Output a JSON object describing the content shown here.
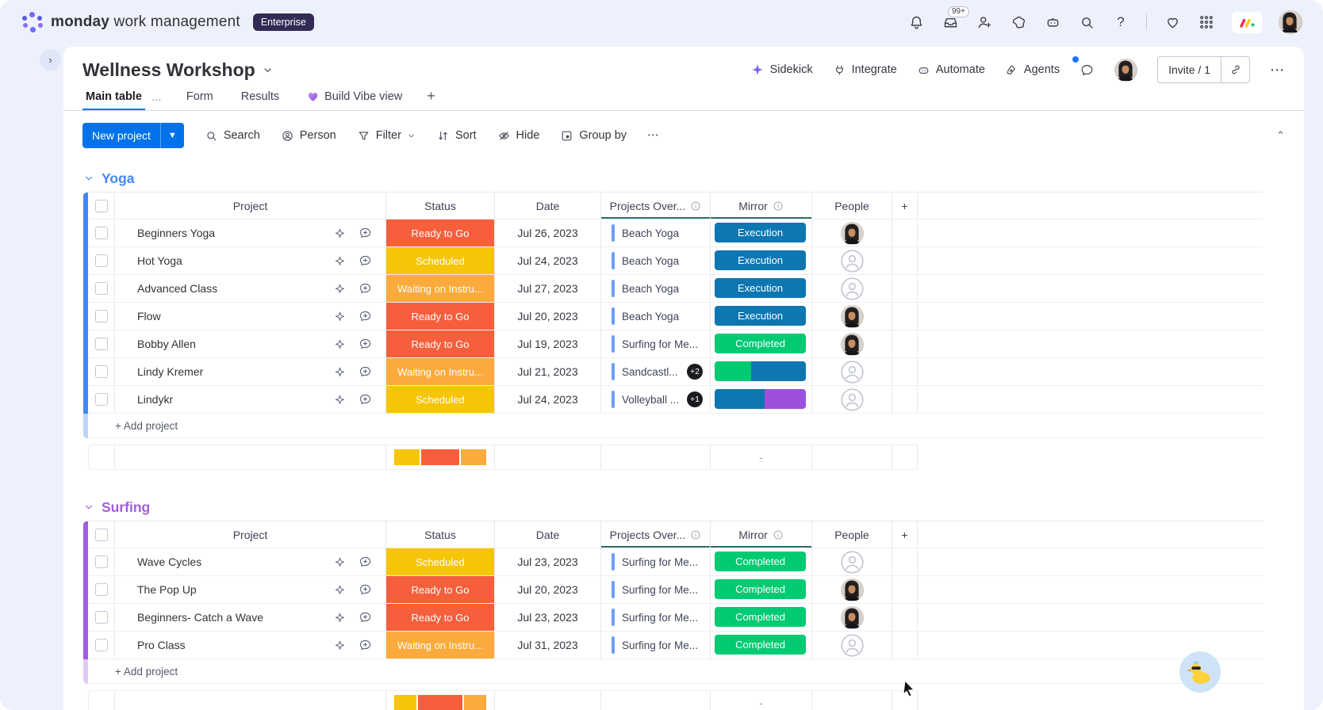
{
  "topbar": {
    "product_bold": "monday",
    "product_rest": "work management",
    "plan_badge": "Enterprise",
    "inbox_count": "99+",
    "help_label": "?"
  },
  "board_header": {
    "title": "Wellness Workshop",
    "sidekick": "Sidekick",
    "integrate": "Integrate",
    "automate": "Automate",
    "agents": "Agents",
    "invite_label": "Invite / 1",
    "more_label": "⋯"
  },
  "tabs": {
    "main_table": "Main table",
    "main_table_menu": "…",
    "form": "Form",
    "results": "Results",
    "vibe": "Build Vibe view",
    "add_tab": "+"
  },
  "toolbar": {
    "new_project": "New project",
    "search": "Search",
    "person": "Person",
    "filter": "Filter",
    "sort": "Sort",
    "hide": "Hide",
    "group_by": "Group by",
    "more": "⋯",
    "collapse": "⌃"
  },
  "columns": {
    "project": "Project",
    "status": "Status",
    "date": "Date",
    "projects_over": "Projects Over...",
    "mirror": "Mirror",
    "people": "People",
    "add_column": "+"
  },
  "labels": {
    "add_project": "+ Add project",
    "mirror_summary_dash": "-"
  },
  "status_colors": {
    "Ready to Go": "#f65f3c",
    "Scheduled": "#f7c508",
    "Waiting on Instru...": "#fbab3d"
  },
  "mirror_colors": {
    "Execution": "#0e76b0",
    "Completed": "#00ca72"
  },
  "accent": {
    "link_blue": "#6d9ef8",
    "badge_black": "#1b1b1f"
  },
  "groups": [
    {
      "name": "Yoga",
      "color": "#4387f6",
      "color_light": "#bcd4fb",
      "rows": [
        {
          "project": "Beginners Yoga",
          "status": "Ready to Go",
          "date": "Jul 26, 2023",
          "over": "Beach Yoga",
          "badge": null,
          "mirror": {
            "label": "Execution"
          },
          "person": "avatar"
        },
        {
          "project": "Hot Yoga",
          "status": "Scheduled",
          "date": "Jul 24, 2023",
          "over": "Beach Yoga",
          "badge": null,
          "mirror": {
            "label": "Execution"
          },
          "person": "empty"
        },
        {
          "project": "Advanced Class",
          "status": "Waiting on Instru...",
          "date": "Jul 27, 2023",
          "over": "Beach Yoga",
          "badge": null,
          "mirror": {
            "label": "Execution"
          },
          "person": "empty"
        },
        {
          "project": "Flow",
          "status": "Ready to Go",
          "date": "Jul 20, 2023",
          "over": "Beach Yoga",
          "badge": null,
          "mirror": {
            "label": "Execution"
          },
          "person": "avatar"
        },
        {
          "project": "Bobby Allen",
          "status": "Ready to Go",
          "date": "Jul 19, 2023",
          "over": "Surfing for Me...",
          "badge": null,
          "mirror": {
            "label": "Completed"
          },
          "person": "avatar"
        },
        {
          "project": "Lindy Kremer",
          "status": "Waiting on Instru...",
          "date": "Jul 21, 2023",
          "over": "Sandcastl...",
          "badge": "+2",
          "mirror": {
            "split": [
              [
                "#00ca72",
                40
              ],
              [
                "#0e76b0",
                60
              ]
            ]
          },
          "person": "empty"
        },
        {
          "project": "Lindykr",
          "status": "Scheduled",
          "date": "Jul 24, 2023",
          "over": "Volleyball ...",
          "badge": "+1",
          "mirror": {
            "split": [
              [
                "#0e76b0",
                55
              ],
              [
                "#9d50dd",
                45
              ]
            ]
          },
          "person": "empty"
        }
      ],
      "summary_segments": [
        [
          "#f7c508",
          28.6
        ],
        [
          "#f65f3c",
          42.8
        ],
        [
          "#fbab3d",
          28.6
        ]
      ],
      "mirror_summary": "-"
    },
    {
      "name": "Surfing",
      "color": "#a25ddc",
      "color_light": "#e0cbf5",
      "rows": [
        {
          "project": "Wave Cycles",
          "status": "Scheduled",
          "date": "Jul 23, 2023",
          "over": "Surfing for Me...",
          "badge": null,
          "mirror": {
            "label": "Completed"
          },
          "person": "empty"
        },
        {
          "project": "The Pop Up",
          "status": "Ready to Go",
          "date": "Jul 20, 2023",
          "over": "Surfing for Me...",
          "badge": null,
          "mirror": {
            "label": "Completed"
          },
          "person": "avatar"
        },
        {
          "project": "Beginners- Catch a Wave",
          "status": "Ready to Go",
          "date": "Jul 23, 2023",
          "over": "Surfing for Me...",
          "badge": null,
          "mirror": {
            "label": "Completed"
          },
          "person": "avatar"
        },
        {
          "project": "Pro Class",
          "status": "Waiting on Instru...",
          "date": "Jul 31, 2023",
          "over": "Surfing for Me...",
          "badge": null,
          "mirror": {
            "label": "Completed"
          },
          "person": "empty"
        }
      ],
      "summary_segments": [
        [
          "#f7c508",
          25
        ],
        [
          "#f65f3c",
          50
        ],
        [
          "#fbab3d",
          25
        ]
      ],
      "mirror_summary": "-"
    }
  ]
}
